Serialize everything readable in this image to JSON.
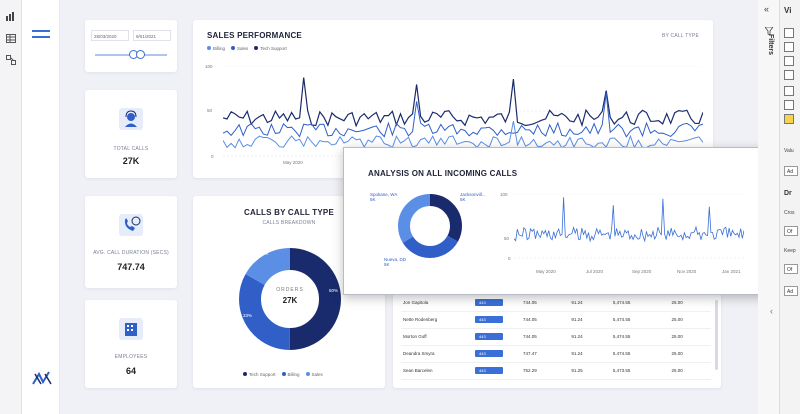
{
  "colors": {
    "navy": "#1a2b6d",
    "mid": "#2f5fc7",
    "light": "#5b8fe6",
    "accent": "#3a6fd8"
  },
  "date_slicer": {
    "start": "28/03/2020",
    "end": "9/01/2021"
  },
  "kpis": [
    {
      "label": "TOTAL CALLS",
      "value": "27K",
      "icon": "headset-agent-icon"
    },
    {
      "label": "AVG. CALL DURATION (secs)",
      "value": "747.74",
      "icon": "phone-clock-icon"
    },
    {
      "label": "EMPLOYEES",
      "value": "64",
      "icon": "building-icon"
    }
  ],
  "sales_perf": {
    "title": "SALES PERFORMANCE",
    "filter_label": "BY CALL TYPE",
    "legend": [
      "Billing",
      "Sales",
      "Tech Support"
    ],
    "y_ticks": [
      "100",
      "50",
      "0"
    ],
    "x_label": "May 2020"
  },
  "calls_by_type": {
    "title": "CALLS BY CALL TYPE",
    "subtitle": "CALLS BREAKDOWN",
    "center_label": "ORDERS",
    "center_value": "27K",
    "slice_labels": [
      "17%",
      "33%",
      "50%"
    ],
    "legend": [
      "Tech Support",
      "Billing",
      "Sales"
    ]
  },
  "analysis": {
    "title": "ANALYSIS ON ALL INCOMING CALLS",
    "donut_labels": [
      {
        "name": "Spokane, WA",
        "value": "5K"
      },
      {
        "name": "Jacksonvill...",
        "value": "5K"
      },
      {
        "name": "Nueva, DD",
        "value": "5K"
      }
    ],
    "y_ticks": [
      "100",
      "50",
      "0"
    ],
    "x_ticks": [
      "May 2020",
      "Jul 2020",
      "Sep 2020",
      "Nov 2020",
      "Jan 2021"
    ]
  },
  "table": {
    "rows": [
      [
        "Jon Gapitola",
        "443",
        "744.05",
        "91.24",
        "5,474.55",
        "25.00"
      ],
      [
        "Nette Rodenberg",
        "443",
        "744.05",
        "91.24",
        "5,474.55",
        "25.00"
      ],
      [
        "Morton Goff",
        "443",
        "744.05",
        "91.24",
        "5,474.55",
        "25.00"
      ],
      [
        "Deandra Smyra",
        "443",
        "747.47",
        "91.24",
        "5,474.55",
        "25.00"
      ],
      [
        "Sean Barcelen",
        "443",
        "752.29",
        "91.25",
        "5,473.55",
        "25.00"
      ]
    ]
  },
  "right_pane": {
    "filters_label": "Filters",
    "vis_label": "Vi",
    "items": [
      "Valu",
      "Ad",
      "Dr",
      "Cros",
      "Of",
      "Keep",
      "Of",
      "Ad"
    ]
  }
}
